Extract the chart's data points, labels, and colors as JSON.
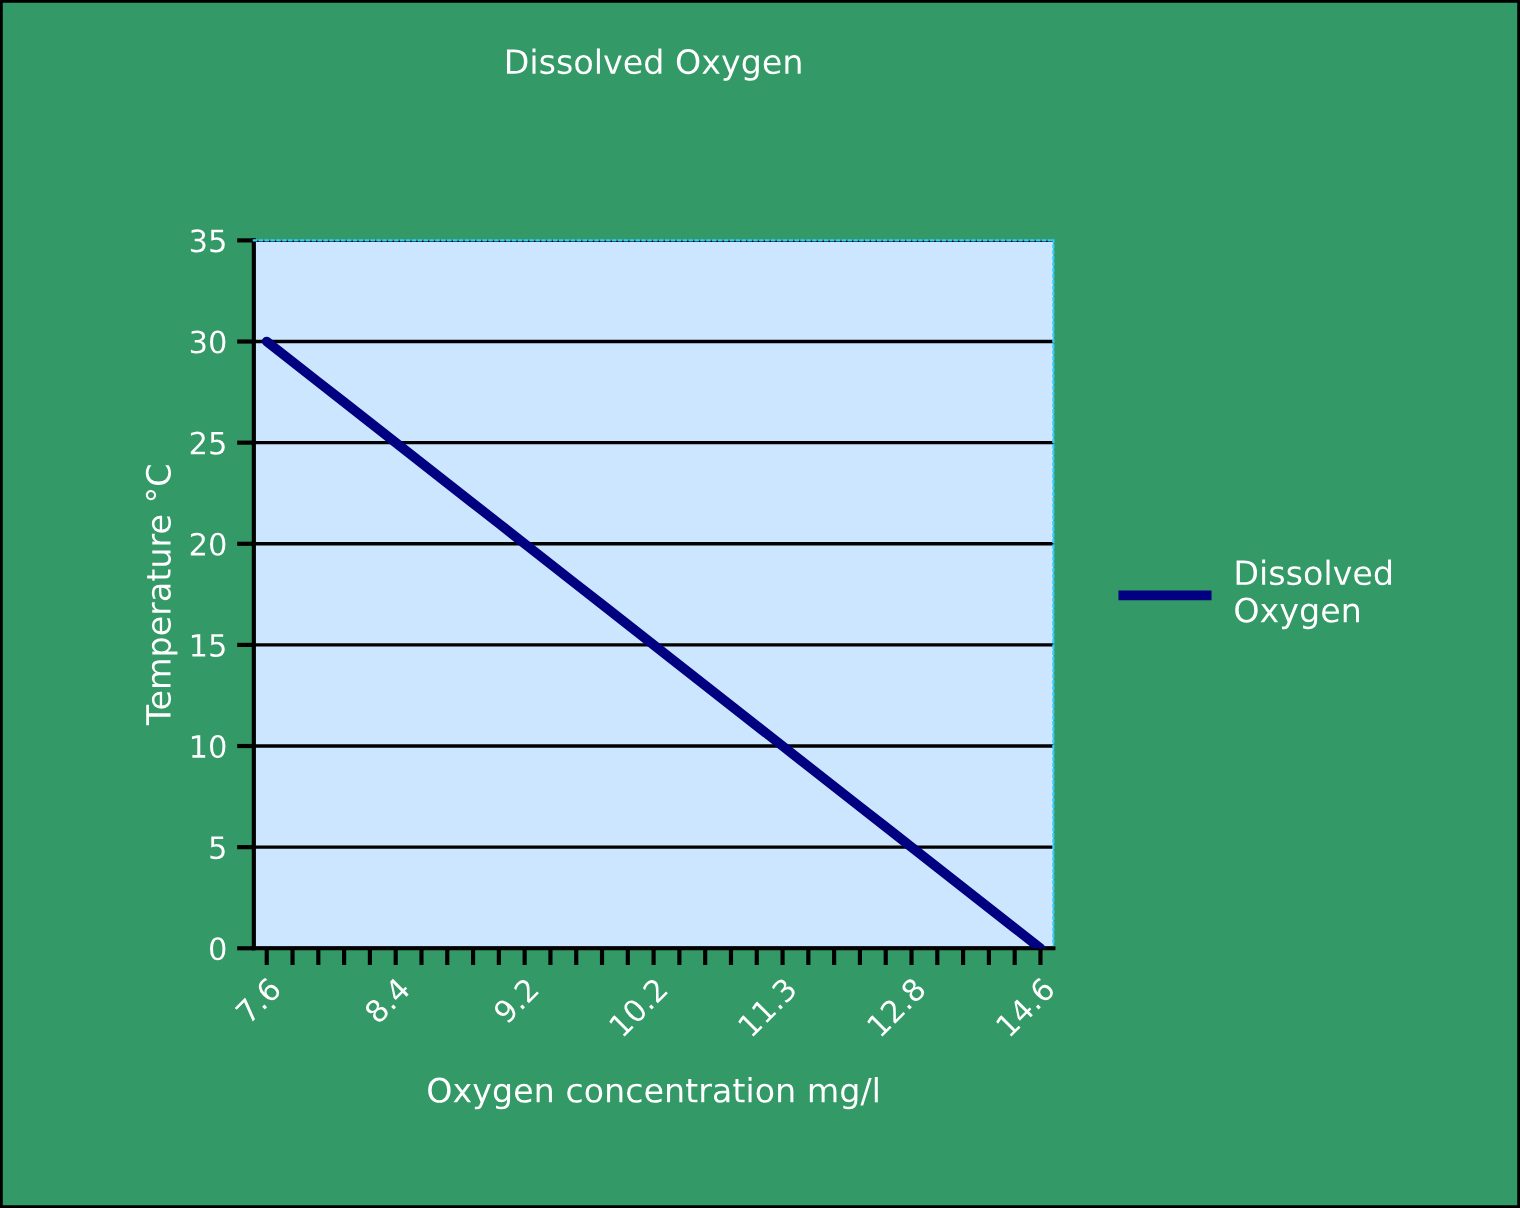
{
  "chart_data": {
    "type": "line",
    "title": "Dissolved Oxygen",
    "xlabel": "Oxygen concentration mg/l",
    "ylabel": "Temperature °C",
    "categories": [
      "7.6",
      null,
      null,
      null,
      null,
      "8.4",
      null,
      null,
      null,
      null,
      "9.2",
      null,
      null,
      null,
      null,
      "10.2",
      null,
      null,
      null,
      null,
      "11.3",
      null,
      null,
      null,
      null,
      "12.8",
      null,
      null,
      null,
      null,
      "14.6"
    ],
    "series": [
      {
        "name": "Dissolved Oxygen",
        "color": "#000080",
        "values": [
          30,
          29,
          28,
          27,
          26,
          25,
          24,
          23,
          22,
          21,
          20,
          19,
          18,
          17,
          16,
          15,
          14,
          13,
          12,
          11,
          10,
          9,
          8,
          7,
          6,
          5,
          4,
          3,
          2,
          1,
          0
        ]
      }
    ],
    "ylim": [
      0,
      35
    ],
    "yticks": [
      0,
      5,
      10,
      15,
      20,
      25,
      30,
      35
    ],
    "grid": "y",
    "legend": "right",
    "marker": "none",
    "line_style": "solid"
  }
}
